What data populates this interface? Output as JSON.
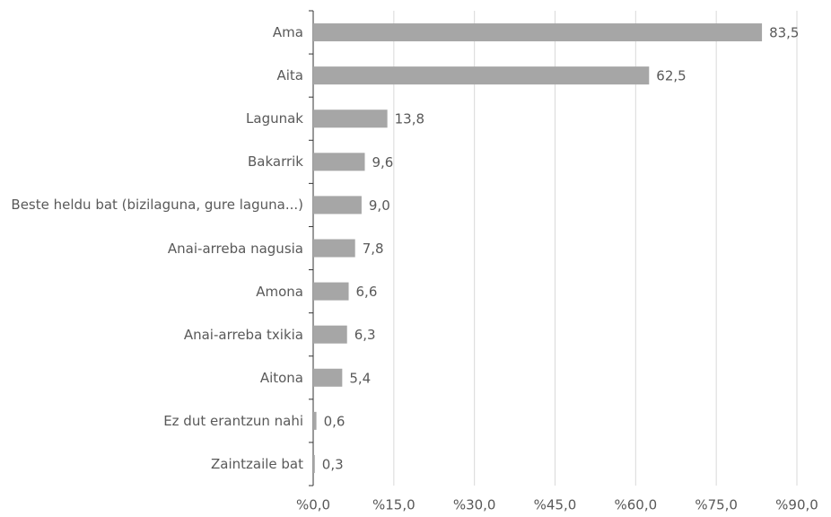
{
  "chart_data": {
    "type": "barh",
    "categories": [
      "Ama",
      "Aita",
      "Lagunak",
      "Bakarrik",
      "Beste heldu bat (bizilaguna, gure laguna...)",
      "Anai-arreba nagusia",
      "Amona",
      "Anai-arreba txikia",
      "Aitona",
      "Ez dut erantzun nahi",
      "Zaintzaile bat"
    ],
    "values": [
      83.5,
      62.5,
      13.8,
      9.6,
      9.0,
      7.8,
      6.6,
      6.3,
      5.4,
      0.6,
      0.3
    ],
    "value_labels": [
      "83,5",
      "62,5",
      "13,8",
      "9,6",
      "9,0",
      "7,8",
      "6,6",
      "6,3",
      "5,4",
      "0,6",
      "0,3"
    ],
    "color": "#a6a6a6",
    "xlim": [
      0,
      90
    ],
    "xticks": [
      {
        "value": 0,
        "label": "%0,0"
      },
      {
        "value": 15,
        "label": "%15,0"
      },
      {
        "value": 30,
        "label": "%30,0"
      },
      {
        "value": 45,
        "label": "%45,0"
      },
      {
        "value": 60,
        "label": "%60,0"
      },
      {
        "value": 75,
        "label": "%75,0"
      },
      {
        "value": 90,
        "label": "%90,0"
      }
    ],
    "grid": true
  }
}
